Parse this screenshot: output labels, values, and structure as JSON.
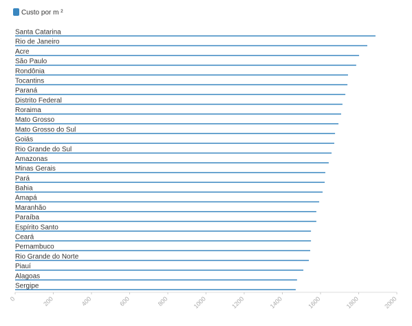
{
  "chart_data": {
    "type": "hbar",
    "categories": [
      "Santa Catarina",
      "Rio de Janeiro",
      "Acre",
      "São Paulo",
      "Rondônia",
      "Tocantins",
      "Paraná",
      "Distrito Federal",
      "Roraima",
      "Mato Grosso",
      "Mato Grosso do Sul",
      "Goiás",
      "Rio Grande do Sul",
      "Amazonas",
      "Minas Gerais",
      "Pará",
      "Bahia",
      "Amapá",
      "Maranhão",
      "Paraíba",
      "Espírito Santo",
      "Ceará",
      "Pernambuco",
      "Rio Grande do Norte",
      "Piauí",
      "Alagoas",
      "Sergipe"
    ],
    "series": [
      {
        "name": "Custo por m ²",
        "color": "#3a87c0",
        "values": [
          1888,
          1845,
          1802,
          1787,
          1744,
          1741,
          1730,
          1715,
          1708,
          1694,
          1676,
          1672,
          1658,
          1643,
          1625,
          1622,
          1611,
          1593,
          1578,
          1578,
          1550,
          1550,
          1546,
          1539,
          1510,
          1477,
          1470
        ]
      }
    ],
    "xlim": [
      0,
      2000
    ],
    "xticks": [
      0,
      200,
      400,
      600,
      800,
      1000,
      1200,
      1400,
      1600,
      1800,
      2000
    ],
    "legend": "top-left"
  }
}
